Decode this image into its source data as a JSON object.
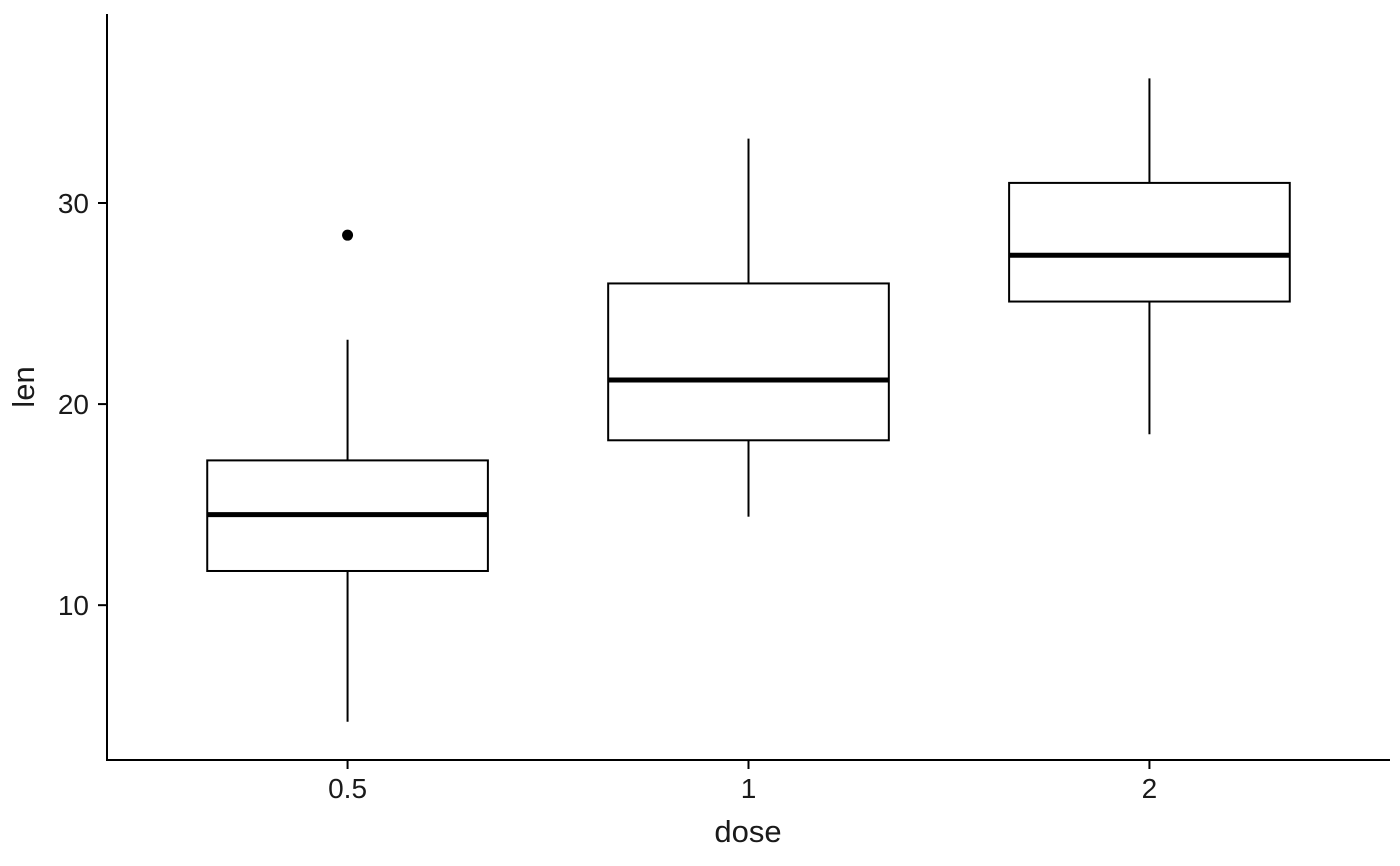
{
  "figure": {
    "background_color": "#ffffff",
    "line_color": "#000000",
    "text_color": "#1a1a1a"
  },
  "chart_data": {
    "type": "boxplot",
    "title": "",
    "xlabel": "dose",
    "ylabel": "len",
    "categories": [
      "0.5",
      "1",
      "2"
    ],
    "y_ticks": [
      10,
      20,
      30
    ],
    "ylim": [
      2.3,
      39.4
    ],
    "grid": false,
    "legend": false,
    "box_fill": "#ffffff",
    "box_width_rel": 0.7,
    "series": [
      {
        "category": "0.5",
        "lower_whisker": 4.2,
        "q1": 11.7,
        "median": 14.5,
        "q3": 17.2,
        "upper_whisker": 23.2,
        "outliers": [
          28.4
        ]
      },
      {
        "category": "1",
        "lower_whisker": 14.4,
        "q1": 18.2,
        "median": 21.2,
        "q3": 26.0,
        "upper_whisker": 33.2,
        "outliers": []
      },
      {
        "category": "2",
        "lower_whisker": 18.5,
        "q1": 25.1,
        "median": 27.4,
        "q3": 31.0,
        "upper_whisker": 36.2,
        "outliers": []
      }
    ]
  }
}
